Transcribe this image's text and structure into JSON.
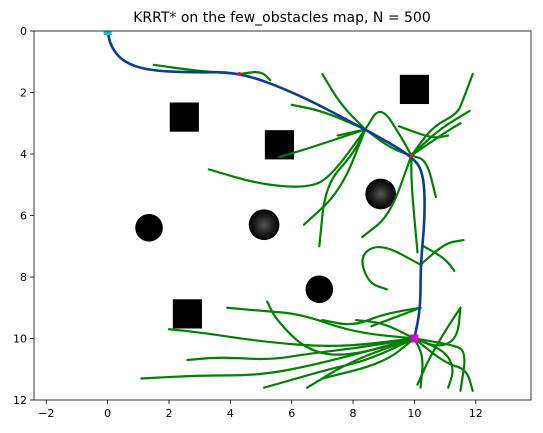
{
  "chart_data": {
    "type": "scatter",
    "title": "KRRT* on the few_obstacles map, N = 500",
    "xlabel": "",
    "ylabel": "",
    "xlim": [
      -2.4,
      13.8
    ],
    "ylim": [
      12,
      0
    ],
    "y_inverted": true,
    "grid": false,
    "legend": "none",
    "x_ticks": [
      -2,
      0,
      2,
      4,
      6,
      8,
      10,
      12
    ],
    "y_ticks": [
      0,
      2,
      4,
      6,
      8,
      10,
      12
    ],
    "x_tick_labels": [
      "−2",
      "0",
      "2",
      "4",
      "6",
      "8",
      "10",
      "12"
    ],
    "y_tick_labels": [
      "0",
      "2",
      "4",
      "6",
      "8",
      "10",
      "12"
    ],
    "colors": {
      "tree": "#008000",
      "path": "#0a3d91",
      "start": "#17becf",
      "goal": "#d400d4",
      "waypoint": "#e41a1c",
      "obstacle": "#000000"
    },
    "obstacles": {
      "squares": [
        {
          "cx": 2.5,
          "cy": 2.8,
          "size": 0.95
        },
        {
          "cx": 5.6,
          "cy": 3.7,
          "size": 0.95
        },
        {
          "cx": 10.0,
          "cy": 1.9,
          "size": 0.95
        },
        {
          "cx": 2.6,
          "cy": 9.2,
          "size": 0.95
        }
      ],
      "circles": [
        {
          "cx": 1.35,
          "cy": 6.4,
          "r": 0.45,
          "blur": false
        },
        {
          "cx": 5.1,
          "cy": 6.3,
          "r": 0.5,
          "blur": true
        },
        {
          "cx": 6.9,
          "cy": 8.4,
          "r": 0.45,
          "blur": false
        },
        {
          "cx": 8.9,
          "cy": 5.3,
          "r": 0.5,
          "blur": true
        }
      ]
    },
    "start": {
      "x": 0.0,
      "y": 0.0
    },
    "goal": {
      "x": 10.0,
      "y": 10.0
    },
    "waypoints": [
      {
        "x": 4.3,
        "y": 1.4
      },
      {
        "x": 9.9,
        "y": 4.05
      }
    ],
    "path": [
      [
        0.0,
        0.0
      ],
      [
        0.1,
        0.5
      ],
      [
        0.5,
        1.0
      ],
      [
        1.3,
        1.28
      ],
      [
        2.7,
        1.35
      ],
      [
        4.3,
        1.33
      ],
      [
        6.2,
        2.05
      ],
      [
        8.4,
        3.2
      ],
      [
        9.9,
        4.05
      ],
      [
        10.3,
        4.6
      ],
      [
        10.35,
        6.0
      ],
      [
        10.2,
        7.6
      ],
      [
        10.2,
        9.0
      ],
      [
        10.0,
        10.0
      ]
    ],
    "tree_branches": [
      [
        [
          1.5,
          1.1
        ],
        [
          2.9,
          1.3
        ],
        [
          4.3,
          1.4
        ]
      ],
      [
        [
          4.3,
          1.4
        ],
        [
          5.0,
          1.3
        ],
        [
          5.3,
          1.6
        ]
      ],
      [
        [
          7.0,
          1.4
        ],
        [
          7.6,
          2.4
        ],
        [
          8.4,
          3.2
        ]
      ],
      [
        [
          6.0,
          2.4
        ],
        [
          7.0,
          2.6
        ],
        [
          8.4,
          3.2
        ]
      ],
      [
        [
          7.5,
          3.4
        ],
        [
          8.4,
          3.2
        ]
      ],
      [
        [
          3.3,
          4.5
        ],
        [
          5.0,
          5.0
        ],
        [
          6.6,
          5.1
        ],
        [
          7.3,
          4.7
        ],
        [
          8.4,
          3.2
        ]
      ],
      [
        [
          5.6,
          4.1
        ],
        [
          6.6,
          3.8
        ],
        [
          8.4,
          3.2
        ]
      ],
      [
        [
          6.9,
          7.0
        ],
        [
          7.1,
          5.0
        ],
        [
          8.0,
          4.0
        ],
        [
          8.4,
          3.2
        ]
      ],
      [
        [
          6.4,
          6.3
        ],
        [
          7.6,
          5.2
        ],
        [
          8.4,
          3.2
        ]
      ],
      [
        [
          8.4,
          3.2
        ],
        [
          8.9,
          2.4
        ],
        [
          9.6,
          3.5
        ],
        [
          9.9,
          4.05
        ]
      ],
      [
        [
          8.4,
          3.2
        ],
        [
          9.2,
          3.8
        ],
        [
          9.9,
          4.05
        ]
      ],
      [
        [
          9.5,
          3.1
        ],
        [
          10.6,
          3.5
        ],
        [
          11.1,
          3.4
        ]
      ],
      [
        [
          9.9,
          4.05
        ],
        [
          10.6,
          3.1
        ],
        [
          11.4,
          2.7
        ],
        [
          11.6,
          2.2
        ],
        [
          11.9,
          1.4
        ]
      ],
      [
        [
          9.9,
          4.05
        ],
        [
          10.8,
          3.2
        ],
        [
          11.8,
          2.6
        ]
      ],
      [
        [
          9.9,
          4.05
        ],
        [
          11.0,
          3.3
        ],
        [
          11.5,
          3.0
        ]
      ],
      [
        [
          9.9,
          4.05
        ],
        [
          10.4,
          4.2
        ],
        [
          10.7,
          5.4
        ]
      ],
      [
        [
          9.9,
          4.05
        ],
        [
          9.2,
          6.0
        ],
        [
          8.3,
          6.7
        ]
      ],
      [
        [
          9.9,
          4.05
        ],
        [
          9.9,
          5.0
        ],
        [
          10.1,
          7.2
        ]
      ],
      [
        [
          10.2,
          7.6
        ],
        [
          8.9,
          6.9
        ],
        [
          8.2,
          7.3
        ],
        [
          8.5,
          8.2
        ],
        [
          9.1,
          8.4
        ]
      ],
      [
        [
          10.2,
          7.6
        ],
        [
          11.0,
          6.9
        ],
        [
          11.6,
          6.8
        ]
      ],
      [
        [
          10.3,
          7.0
        ],
        [
          11.0,
          7.4
        ],
        [
          11.3,
          7.8
        ]
      ],
      [
        [
          10.2,
          9.0
        ],
        [
          9.0,
          9.2
        ],
        [
          8.0,
          9.6
        ],
        [
          7.0,
          9.4
        ]
      ],
      [
        [
          10.2,
          9.0
        ],
        [
          9.4,
          9.3
        ],
        [
          8.6,
          9.6
        ]
      ],
      [
        [
          10.0,
          10.0
        ],
        [
          9.0,
          9.5
        ],
        [
          8.1,
          9.4
        ]
      ],
      [
        [
          10.0,
          10.0
        ],
        [
          8.0,
          10.7
        ],
        [
          6.5,
          11.6
        ]
      ],
      [
        [
          10.0,
          10.0
        ],
        [
          8.5,
          10.7
        ],
        [
          7.2,
          11.0
        ],
        [
          5.8,
          11.4
        ],
        [
          5.1,
          11.6
        ]
      ],
      [
        [
          10.0,
          10.0
        ],
        [
          9.0,
          10.8
        ],
        [
          7.0,
          11.3
        ]
      ],
      [
        [
          10.0,
          10.0
        ],
        [
          8.2,
          10.3
        ],
        [
          6.5,
          10.5
        ],
        [
          5.3,
          10.7
        ],
        [
          3.7,
          10.6
        ],
        [
          2.6,
          10.7
        ]
      ],
      [
        [
          10.0,
          10.0
        ],
        [
          7.4,
          10.3
        ],
        [
          5.0,
          10.1
        ],
        [
          3.0,
          9.8
        ],
        [
          2.0,
          9.7
        ]
      ],
      [
        [
          10.0,
          10.0
        ],
        [
          8.0,
          9.8
        ],
        [
          6.3,
          9.2
        ],
        [
          5.0,
          9.1
        ],
        [
          3.9,
          9.0
        ]
      ],
      [
        [
          5.2,
          8.8
        ],
        [
          5.5,
          9.4
        ],
        [
          6.5,
          10.4
        ],
        [
          7.8,
          10.6
        ],
        [
          10.0,
          10.0
        ]
      ],
      [
        [
          1.1,
          11.3
        ],
        [
          3.0,
          11.2
        ],
        [
          5.0,
          11.2
        ],
        [
          7.0,
          10.8
        ],
        [
          10.0,
          10.0
        ]
      ],
      [
        [
          10.0,
          10.0
        ],
        [
          10.8,
          10.3
        ],
        [
          11.4,
          10.0
        ],
        [
          11.5,
          9.0
        ]
      ],
      [
        [
          10.0,
          10.0
        ],
        [
          11.0,
          10.4
        ],
        [
          11.3,
          11.0
        ],
        [
          11.1,
          11.6
        ]
      ],
      [
        [
          10.0,
          10.0
        ],
        [
          11.0,
          10.8
        ],
        [
          11.7,
          11.0
        ],
        [
          11.9,
          11.7
        ]
      ],
      [
        [
          10.0,
          10.0
        ],
        [
          10.3,
          10.6
        ],
        [
          10.2,
          11.6
        ]
      ],
      [
        [
          10.0,
          10.0
        ],
        [
          11.2,
          10.2
        ],
        [
          11.7,
          10.4
        ],
        [
          11.5,
          11.7
        ]
      ],
      [
        [
          11.5,
          9.0
        ],
        [
          11.1,
          9.6
        ],
        [
          10.5,
          10.6
        ],
        [
          10.1,
          11.5
        ]
      ]
    ]
  }
}
